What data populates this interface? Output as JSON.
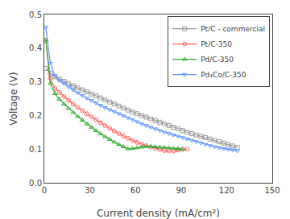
{
  "chart_data": {
    "type": "line",
    "xlabel": "Current density (mA/cm²)",
    "ylabel": "Voltage (V)",
    "xlim": [
      0,
      150
    ],
    "ylim": [
      0.0,
      0.5
    ],
    "xticks": [
      0,
      30,
      60,
      90,
      120,
      150
    ],
    "yticks": [
      {
        "value": 0.0,
        "label": "0.0"
      },
      0.1,
      0.2,
      0.3,
      0.4,
      0.5
    ],
    "grid": false,
    "legend": "upper right",
    "series": [
      {
        "name": "Pt/C - commercial",
        "color": "#999999",
        "marker": "square",
        "x": [
          1,
          4,
          7,
          10,
          13,
          16,
          19,
          22,
          25,
          28,
          31,
          34,
          37,
          40,
          43,
          46,
          49,
          52,
          55,
          58,
          61,
          64,
          67,
          70,
          73,
          76,
          79,
          82,
          85,
          88,
          91,
          94,
          97,
          100,
          103,
          106,
          109,
          112,
          115,
          118,
          121,
          124,
          127
        ],
        "values": [
          0.34,
          0.325,
          0.315,
          0.308,
          0.301,
          0.295,
          0.288,
          0.282,
          0.276,
          0.27,
          0.264,
          0.258,
          0.252,
          0.246,
          0.24,
          0.234,
          0.228,
          0.222,
          0.216,
          0.21,
          0.205,
          0.2,
          0.195,
          0.19,
          0.185,
          0.18,
          0.175,
          0.17,
          0.165,
          0.16,
          0.155,
          0.15,
          0.146,
          0.142,
          0.138,
          0.134,
          0.13,
          0.126,
          0.122,
          0.118,
          0.113,
          0.109,
          0.105
        ]
      },
      {
        "name": "Pt/C-350",
        "color": "#ff6666",
        "marker": "circle",
        "x": [
          1,
          4,
          7,
          10,
          13,
          16,
          19,
          22,
          25,
          28,
          31,
          34,
          37,
          40,
          43,
          46,
          49,
          52,
          55,
          58,
          61,
          64,
          67,
          70,
          73,
          76,
          79,
          82,
          85,
          88,
          91,
          94
        ],
        "values": [
          0.422,
          0.31,
          0.28,
          0.268,
          0.256,
          0.245,
          0.234,
          0.224,
          0.214,
          0.205,
          0.196,
          0.187,
          0.178,
          0.17,
          0.162,
          0.154,
          0.146,
          0.139,
          0.132,
          0.126,
          0.12,
          0.115,
          0.11,
          0.106,
          0.102,
          0.099,
          0.096,
          0.094,
          0.095,
          0.097,
          0.099,
          0.1
        ]
      },
      {
        "name": "Pd/C-350",
        "color": "#33aa33",
        "marker": "triangle-up",
        "x": [
          1,
          4,
          7,
          10,
          13,
          16,
          19,
          22,
          25,
          28,
          31,
          34,
          37,
          40,
          43,
          46,
          49,
          52,
          55,
          58,
          61,
          64,
          67,
          70,
          73,
          76,
          79,
          82,
          85,
          88,
          91
        ],
        "values": [
          0.425,
          0.295,
          0.265,
          0.248,
          0.234,
          0.221,
          0.209,
          0.197,
          0.186,
          0.175,
          0.165,
          0.155,
          0.146,
          0.137,
          0.129,
          0.121,
          0.114,
          0.107,
          0.101,
          0.102,
          0.104,
          0.106,
          0.108,
          0.108,
          0.107,
          0.106,
          0.105,
          0.104,
          0.103,
          0.102,
          0.1
        ]
      },
      {
        "name": "Pd₄Co/C-350",
        "color": "#6699ff",
        "marker": "triangle-down",
        "x": [
          1,
          4,
          7,
          10,
          13,
          16,
          19,
          22,
          25,
          28,
          31,
          34,
          37,
          40,
          43,
          46,
          49,
          52,
          55,
          58,
          61,
          64,
          67,
          70,
          73,
          76,
          79,
          82,
          85,
          88,
          91,
          94,
          97,
          100,
          103,
          106,
          109,
          112,
          115,
          118,
          121,
          124,
          127
        ],
        "values": [
          0.462,
          0.355,
          0.318,
          0.304,
          0.295,
          0.285,
          0.276,
          0.267,
          0.259,
          0.251,
          0.244,
          0.237,
          0.23,
          0.223,
          0.217,
          0.211,
          0.205,
          0.199,
          0.193,
          0.187,
          0.181,
          0.175,
          0.17,
          0.165,
          0.16,
          0.155,
          0.15,
          0.146,
          0.142,
          0.138,
          0.134,
          0.13,
          0.126,
          0.122,
          0.118,
          0.114,
          0.11,
          0.107,
          0.104,
          0.101,
          0.099,
          0.097,
          0.095
        ]
      }
    ]
  }
}
